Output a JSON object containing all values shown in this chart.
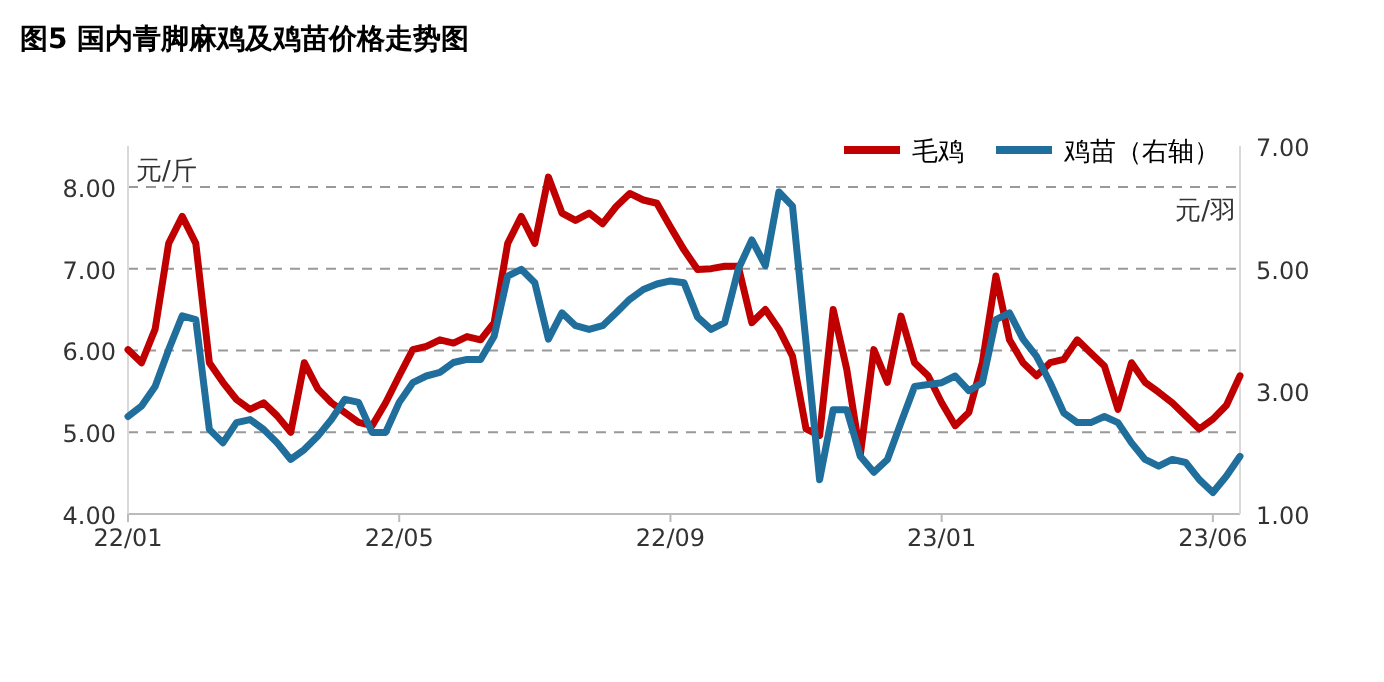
{
  "chart_data": {
    "type": "line",
    "title": "图5  国内青脚麻鸡及鸡苗价格走势图",
    "ylabel": "元/斤",
    "y2label": "元/羽",
    "categories": [
      "22/01",
      null,
      null,
      null,
      null,
      null,
      null,
      null,
      null,
      null,
      null,
      null,
      null,
      null,
      null,
      null,
      null,
      null,
      null,
      null,
      "22/05",
      null,
      null,
      null,
      null,
      null,
      null,
      null,
      null,
      null,
      null,
      null,
      null,
      null,
      null,
      null,
      null,
      null,
      null,
      null,
      "22/09",
      null,
      null,
      null,
      null,
      null,
      null,
      null,
      null,
      null,
      null,
      null,
      null,
      null,
      null,
      null,
      null,
      null,
      null,
      null,
      "23/01",
      null,
      null,
      null,
      null,
      null,
      null,
      null,
      null,
      null,
      null,
      null,
      null,
      null,
      null,
      null,
      null,
      null,
      null,
      null,
      "23/06",
      null,
      null
    ],
    "series": [
      {
        "name": "毛鸡",
        "color": "#c00000",
        "values": [
          6.01,
          5.85,
          6.26,
          7.31,
          7.64,
          7.31,
          5.85,
          5.61,
          5.4,
          5.28,
          5.36,
          5.2,
          5.0,
          5.85,
          5.53,
          5.36,
          5.24,
          5.12,
          5.08,
          5.36,
          5.69,
          6.01,
          6.05,
          6.13,
          6.09,
          6.17,
          6.13,
          6.34,
          7.31,
          7.64,
          7.31,
          8.12,
          7.68,
          7.59,
          7.68,
          7.55,
          7.76,
          7.92,
          7.84,
          7.8,
          7.51,
          7.23,
          6.99,
          7.0,
          7.03,
          7.03,
          6.34,
          6.5,
          6.26,
          5.93,
          5.04,
          4.96,
          6.5,
          5.77,
          4.72,
          6.01,
          5.61,
          6.42,
          5.85,
          5.69,
          5.36,
          5.08,
          5.24,
          5.85,
          6.91,
          6.13,
          5.85,
          5.69,
          5.85,
          5.89,
          6.13,
          5.97,
          5.81,
          5.28,
          5.85,
          5.61,
          5.49,
          5.36,
          5.2,
          5.04,
          5.16,
          5.33,
          5.69
        ]
      },
      {
        "name": "鸡苗（右轴）",
        "color": "#1f6e9c",
        "axis": "y2",
        "values": [
          2.59,
          2.76,
          3.08,
          3.68,
          4.23,
          4.17,
          2.38,
          2.16,
          2.49,
          2.54,
          2.38,
          2.16,
          1.89,
          2.05,
          2.27,
          2.54,
          2.87,
          2.82,
          2.33,
          2.33,
          2.82,
          3.14,
          3.25,
          3.31,
          3.47,
          3.52,
          3.52,
          3.9,
          4.88,
          4.99,
          4.77,
          3.85,
          4.28,
          4.07,
          4.01,
          4.07,
          4.28,
          4.5,
          4.66,
          4.75,
          4.8,
          4.77,
          4.21,
          4.01,
          4.12,
          4.99,
          5.47,
          5.05,
          6.25,
          6.02,
          3.79,
          1.56,
          2.7,
          2.7,
          1.94,
          1.68,
          1.89,
          2.49,
          3.08,
          3.11,
          3.14,
          3.25,
          3.01,
          3.14,
          4.17,
          4.28,
          3.85,
          3.57,
          3.14,
          2.65,
          2.49,
          2.49,
          2.59,
          2.49,
          2.16,
          1.89,
          1.78,
          1.89,
          1.84,
          1.56,
          1.35,
          1.62,
          1.94
        ]
      }
    ],
    "ylim": [
      4,
      8.5
    ],
    "yticks": [
      {
        "value": 4,
        "label": "4.00"
      },
      {
        "value": 5,
        "label": "5.00"
      },
      {
        "value": 6,
        "label": "6.00"
      },
      {
        "value": 7,
        "label": "7.00"
      },
      {
        "value": 8,
        "label": "8.00"
      }
    ],
    "y2lim": [
      1,
      7
    ],
    "y2ticks": [
      {
        "value": 1,
        "label": "1.00"
      },
      {
        "value": 3,
        "label": "3.00"
      },
      {
        "value": 5,
        "label": "5.00"
      },
      {
        "value": 7,
        "label": "7.00"
      }
    ],
    "grid": "y",
    "legend": "top right",
    "line_style": "solid",
    "marker": "none"
  }
}
